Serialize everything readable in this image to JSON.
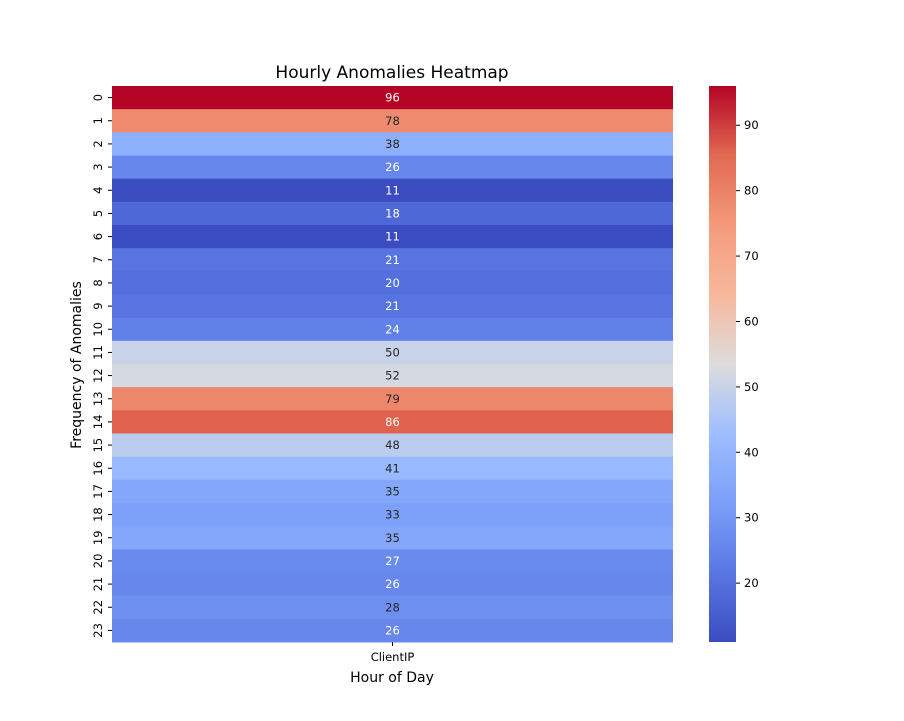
{
  "chart_data": {
    "type": "heatmap",
    "title": "Hourly Anomalies Heatmap",
    "xlabel": "Hour of Day",
    "ylabel": "Frequency of Anomalies",
    "columns": [
      "ClientIP"
    ],
    "rows": [
      "0",
      "1",
      "2",
      "3",
      "4",
      "5",
      "6",
      "7",
      "8",
      "9",
      "10",
      "11",
      "12",
      "13",
      "14",
      "15",
      "16",
      "17",
      "18",
      "19",
      "20",
      "21",
      "22",
      "23"
    ],
    "values": [
      96,
      78,
      38,
      26,
      11,
      18,
      11,
      21,
      20,
      21,
      24,
      50,
      52,
      79,
      86,
      48,
      41,
      35,
      33,
      35,
      27,
      26,
      28,
      26
    ],
    "annotated": true,
    "colormap": "coolwarm",
    "colorbar": {
      "range": [
        11,
        96
      ],
      "ticks": [
        20,
        30,
        40,
        50,
        60,
        70,
        80,
        90
      ]
    }
  }
}
